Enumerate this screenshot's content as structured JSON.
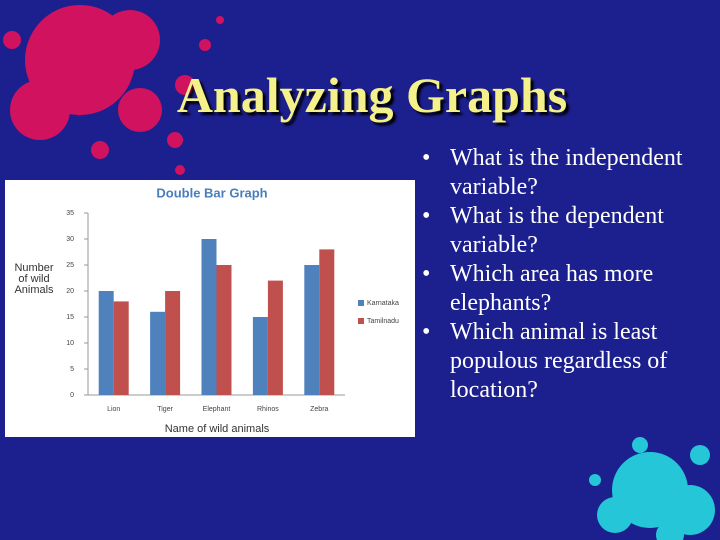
{
  "slide": {
    "title": "Analyzing Graphs",
    "bullets": [
      "What is the independent variable?",
      "What is the dependent variable?",
      "Which area has more elephants?",
      "Which animal is least populous regardless of location?"
    ]
  },
  "chart_data": {
    "type": "bar",
    "title": "Double Bar Graph",
    "x_label": "Name of wild animals",
    "y_label": "Number of wild Animals",
    "categories": [
      "Lion",
      "Tiger",
      "Elephant",
      "Rhinos",
      "Zebra"
    ],
    "series": [
      {
        "name": "Karnataka",
        "color": "#4f81bd",
        "values": [
          20,
          16,
          30,
          15,
          25
        ]
      },
      {
        "name": "Tamilnadu",
        "color": "#c0504d",
        "values": [
          18,
          20,
          25,
          22,
          28
        ]
      }
    ],
    "ylim": [
      0,
      35
    ],
    "yticks": [
      0,
      5,
      10,
      15,
      20,
      25,
      30,
      35
    ],
    "grid": false,
    "legend": "right"
  }
}
